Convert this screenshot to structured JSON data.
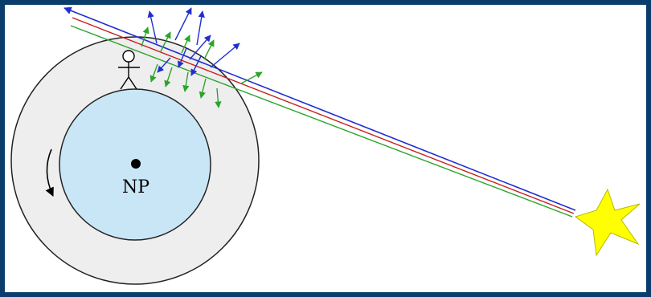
{
  "diagram": {
    "center_label": "NP",
    "colors": {
      "frame": "#0a3d6b",
      "atmosphere": "#eeeeee",
      "earth": "#c9e6f7",
      "blue_ray": "#1f2fcf",
      "red_ray": "#c82020",
      "green_ray": "#2aa52a",
      "star": "#ffff00"
    },
    "icons": [
      "observer-icon",
      "rotation-arrow-icon",
      "star-icon",
      "north-pole-dot-icon"
    ]
  }
}
